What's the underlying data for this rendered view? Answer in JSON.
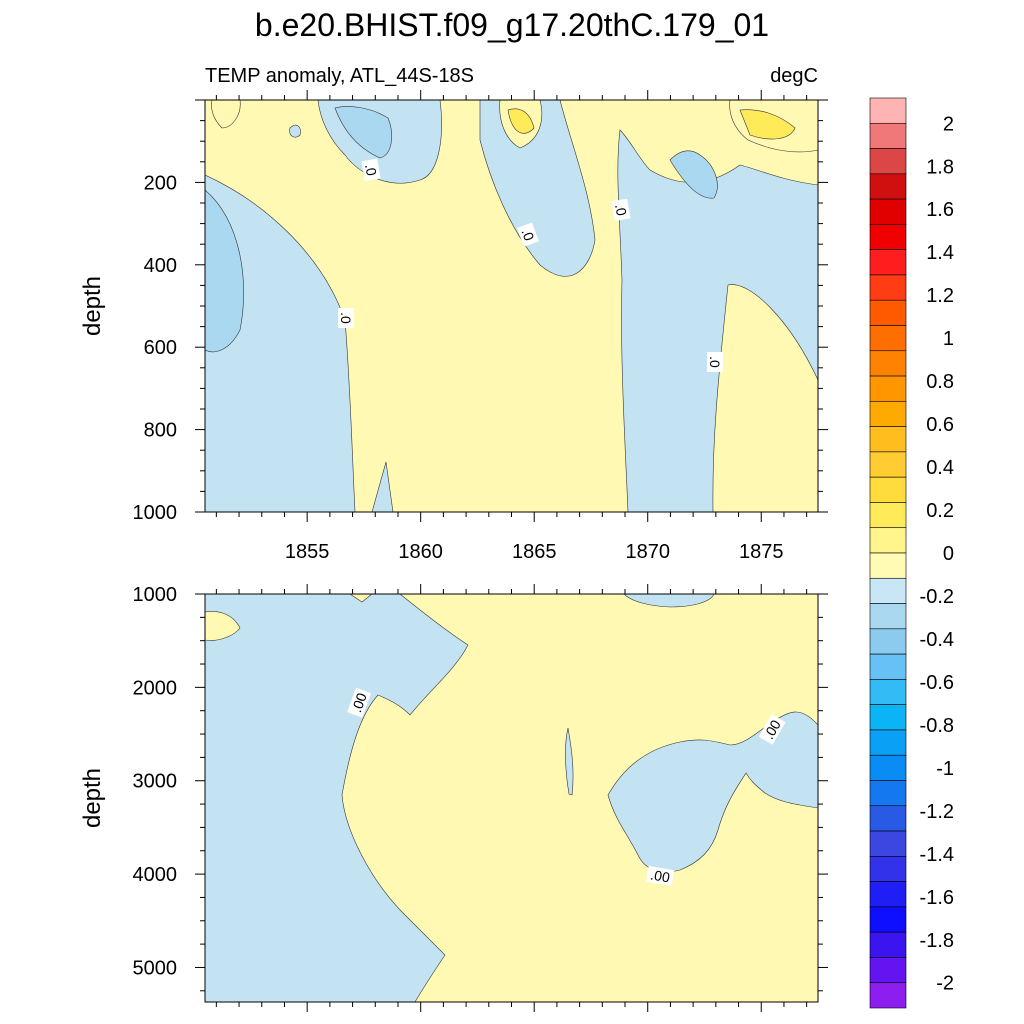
{
  "title": "b.e20.BHIST.f09_g17.20thC.179_01",
  "subtitle_left": "TEMP anomaly, ATL_44S-18S",
  "subtitle_right": "degC",
  "chart_data": [
    {
      "type": "contour",
      "panel": "upper",
      "ylabel": "depth",
      "xlim": [
        1850.5,
        1877.5
      ],
      "ylim": [
        0,
        1000
      ],
      "y_inverted": true,
      "yticks": [
        200,
        400,
        600,
        800,
        1000
      ],
      "xticks": [
        1855,
        1860,
        1865,
        1870,
        1875
      ],
      "contour_labels": [
        ".0",
        ".0",
        ".0",
        ".0",
        ".0"
      ]
    },
    {
      "type": "contour",
      "panel": "lower",
      "ylabel": "depth",
      "xlim": [
        1850.5,
        1877.5
      ],
      "ylim": [
        1000,
        5370
      ],
      "y_inverted": true,
      "yticks": [
        1000,
        2000,
        3000,
        4000,
        5000
      ],
      "contour_labels": [
        ".00",
        ".00",
        ".00"
      ]
    }
  ],
  "colorbar": {
    "labels": [
      "2",
      "1.8",
      "1.6",
      "1.4",
      "1.2",
      "1",
      "0.8",
      "0.6",
      "0.4",
      "0.2",
      "0",
      "-0.2",
      "-0.4",
      "-0.6",
      "-0.8",
      "-1",
      "-1.2",
      "-1.4",
      "-1.6",
      "-1.8",
      "-2"
    ],
    "colors": [
      "#ffb4b4",
      "#f07878",
      "#dc4646",
      "#d01010",
      "#e10000",
      "#f00000",
      "#ff1e1e",
      "#ff3c14",
      "#ff5a00",
      "#ff6e00",
      "#ff8200",
      "#ff9600",
      "#ffaa00",
      "#ffbe1e",
      "#ffcd32",
      "#ffdc3c",
      "#ffeb5a",
      "#fff58c",
      "#fffab4",
      "#c8e6f5",
      "#aad8f0",
      "#8ccaee",
      "#66c2f5",
      "#33bbf5",
      "#0ab4f5",
      "#0aa0f5",
      "#0a8cf5",
      "#1478f0",
      "#285ae6",
      "#3c46e1",
      "#3232eb",
      "#1e1ef5",
      "#0f0fff",
      "#3c14f0",
      "#6414f0",
      "#8c1ef0"
    ],
    "field_colors": {
      "positive": "#fff9b4",
      "negative": "#c3e3f3",
      "negative_dark": "#aad8f0"
    }
  }
}
